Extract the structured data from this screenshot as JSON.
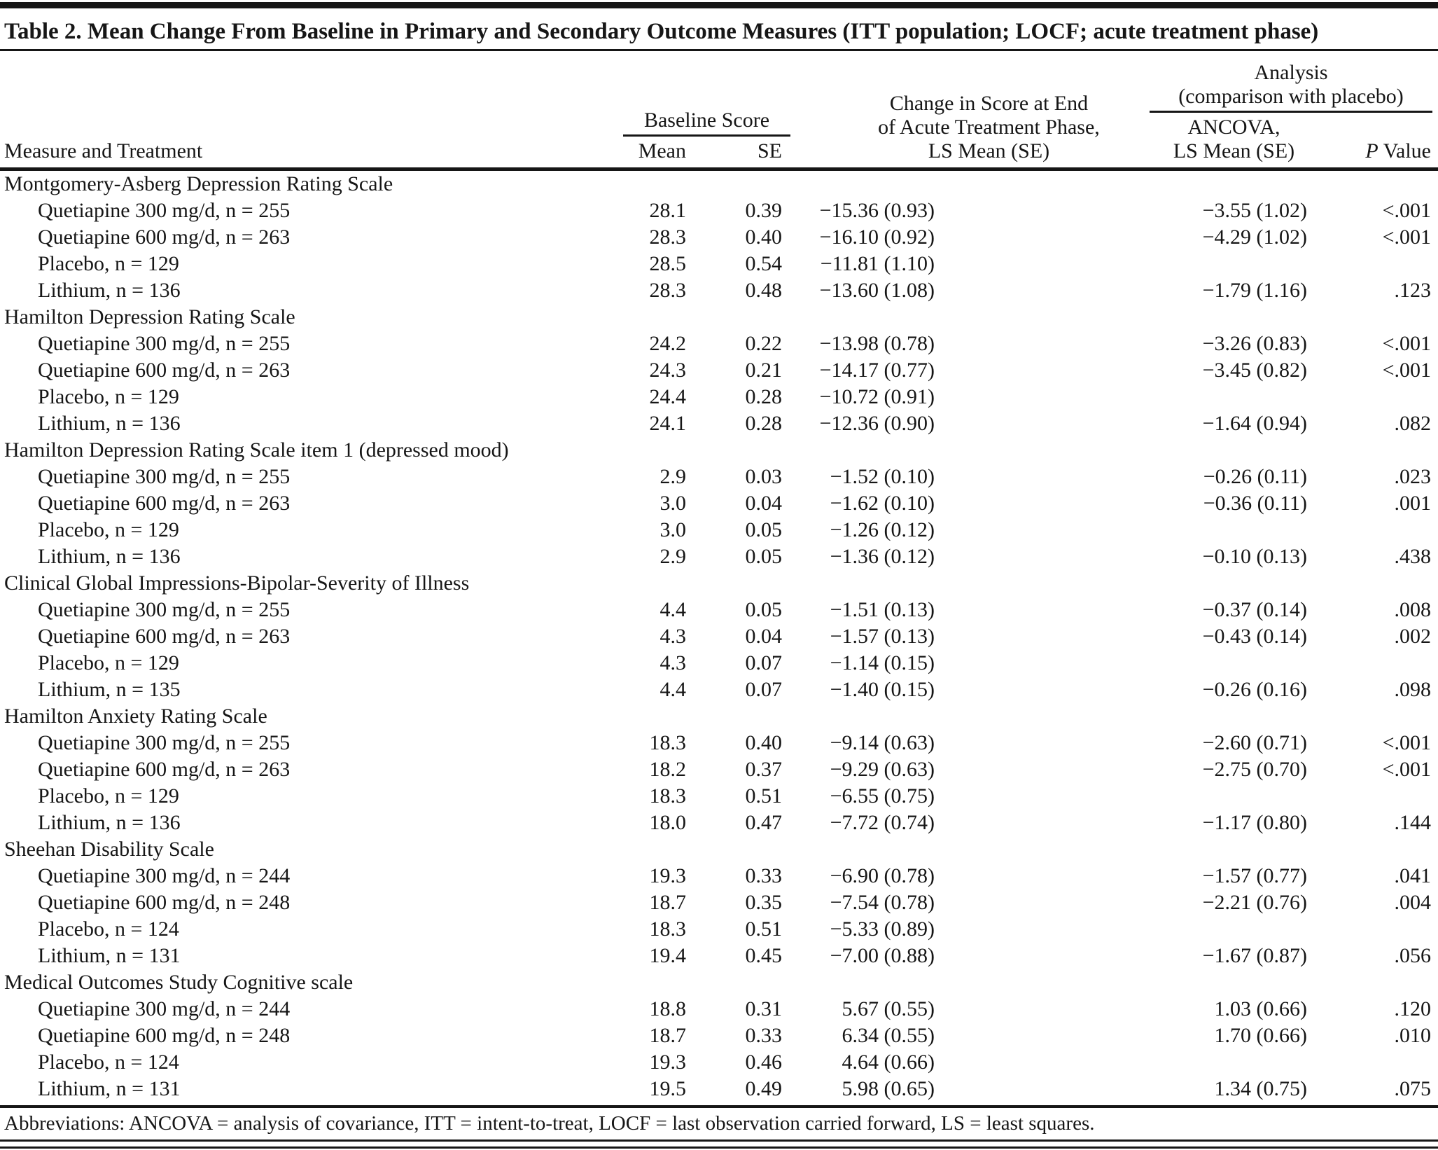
{
  "title": "Table 2. Mean Change From Baseline in Primary and Secondary Outcome Measures (ITT population; LOCF; acute treatment phase)",
  "header": {
    "measure": "Measure and Treatment",
    "baseline_group": "Baseline Score",
    "mean": "Mean",
    "se": "SE",
    "change_lines": [
      "Change in Score at End",
      "of Acute Treatment Phase,",
      "LS Mean (SE)"
    ],
    "analysis_group_lines": [
      "Analysis",
      "(comparison with placebo)"
    ],
    "ancova_lines": [
      "ANCOVA,",
      "LS Mean (SE)"
    ],
    "p_italic": "P",
    "p_rest": " Value"
  },
  "sections": [
    {
      "name": "Montgomery-Asberg Depression Rating Scale",
      "rows": [
        {
          "label": "Quetiapine 300 mg/d, n = 255",
          "mean": "28.1",
          "se": "0.39",
          "change": "−15.36 (0.93)",
          "ancova": "−3.55 (1.02)",
          "p": "<.001"
        },
        {
          "label": "Quetiapine 600 mg/d, n = 263",
          "mean": "28.3",
          "se": "0.40",
          "change": "−16.10 (0.92)",
          "ancova": "−4.29 (1.02)",
          "p": "<.001"
        },
        {
          "label": "Placebo, n = 129",
          "mean": "28.5",
          "se": "0.54",
          "change": "−11.81 (1.10)",
          "ancova": "",
          "p": ""
        },
        {
          "label": "Lithium, n = 136",
          "mean": "28.3",
          "se": "0.48",
          "change": "−13.60 (1.08)",
          "ancova": "−1.79 (1.16)",
          "p": ".123"
        }
      ]
    },
    {
      "name": "Hamilton Depression Rating Scale",
      "rows": [
        {
          "label": "Quetiapine 300 mg/d, n = 255",
          "mean": "24.2",
          "se": "0.22",
          "change": "−13.98 (0.78)",
          "ancova": "−3.26 (0.83)",
          "p": "<.001"
        },
        {
          "label": "Quetiapine 600 mg/d, n = 263",
          "mean": "24.3",
          "se": "0.21",
          "change": "−14.17 (0.77)",
          "ancova": "−3.45 (0.82)",
          "p": "<.001"
        },
        {
          "label": "Placebo, n = 129",
          "mean": "24.4",
          "se": "0.28",
          "change": "−10.72 (0.91)",
          "ancova": "",
          "p": ""
        },
        {
          "label": "Lithium, n = 136",
          "mean": "24.1",
          "se": "0.28",
          "change": "−12.36 (0.90)",
          "ancova": "−1.64 (0.94)",
          "p": ".082"
        }
      ]
    },
    {
      "name": "Hamilton Depression Rating Scale item 1 (depressed mood)",
      "rows": [
        {
          "label": "Quetiapine 300 mg/d, n = 255",
          "mean": "2.9",
          "se": "0.03",
          "change": "−1.52 (0.10)",
          "ancova": "−0.26 (0.11)",
          "p": ".023"
        },
        {
          "label": "Quetiapine 600 mg/d, n = 263",
          "mean": "3.0",
          "se": "0.04",
          "change": "−1.62 (0.10)",
          "ancova": "−0.36 (0.11)",
          "p": ".001"
        },
        {
          "label": "Placebo, n = 129",
          "mean": "3.0",
          "se": "0.05",
          "change": "−1.26 (0.12)",
          "ancova": "",
          "p": ""
        },
        {
          "label": "Lithium, n = 136",
          "mean": "2.9",
          "se": "0.05",
          "change": "−1.36 (0.12)",
          "ancova": "−0.10 (0.13)",
          "p": ".438"
        }
      ]
    },
    {
      "name": "Clinical Global Impressions-Bipolar-Severity of Illness",
      "rows": [
        {
          "label": "Quetiapine 300 mg/d, n = 255",
          "mean": "4.4",
          "se": "0.05",
          "change": "−1.51 (0.13)",
          "ancova": "−0.37 (0.14)",
          "p": ".008"
        },
        {
          "label": "Quetiapine 600 mg/d, n = 263",
          "mean": "4.3",
          "se": "0.04",
          "change": "−1.57 (0.13)",
          "ancova": "−0.43 (0.14)",
          "p": ".002"
        },
        {
          "label": "Placebo, n = 129",
          "mean": "4.3",
          "se": "0.07",
          "change": "−1.14 (0.15)",
          "ancova": "",
          "p": ""
        },
        {
          "label": "Lithium, n = 135",
          "mean": "4.4",
          "se": "0.07",
          "change": "−1.40 (0.15)",
          "ancova": "−0.26 (0.16)",
          "p": ".098"
        }
      ]
    },
    {
      "name": "Hamilton Anxiety Rating Scale",
      "rows": [
        {
          "label": "Quetiapine 300 mg/d, n = 255",
          "mean": "18.3",
          "se": "0.40",
          "change": "−9.14 (0.63)",
          "ancova": "−2.60 (0.71)",
          "p": "<.001"
        },
        {
          "label": "Quetiapine 600 mg/d, n = 263",
          "mean": "18.2",
          "se": "0.37",
          "change": "−9.29 (0.63)",
          "ancova": "−2.75 (0.70)",
          "p": "<.001"
        },
        {
          "label": "Placebo, n = 129",
          "mean": "18.3",
          "se": "0.51",
          "change": "−6.55 (0.75)",
          "ancova": "",
          "p": ""
        },
        {
          "label": "Lithium, n = 136",
          "mean": "18.0",
          "se": "0.47",
          "change": "−7.72 (0.74)",
          "ancova": "−1.17 (0.80)",
          "p": ".144"
        }
      ]
    },
    {
      "name": "Sheehan Disability Scale",
      "rows": [
        {
          "label": "Quetiapine 300 mg/d, n = 244",
          "mean": "19.3",
          "se": "0.33",
          "change": "−6.90 (0.78)",
          "ancova": "−1.57 (0.77)",
          "p": ".041"
        },
        {
          "label": "Quetiapine 600 mg/d, n = 248",
          "mean": "18.7",
          "se": "0.35",
          "change": "−7.54 (0.78)",
          "ancova": "−2.21 (0.76)",
          "p": ".004"
        },
        {
          "label": "Placebo, n = 124",
          "mean": "18.3",
          "se": "0.51",
          "change": "−5.33 (0.89)",
          "ancova": "",
          "p": ""
        },
        {
          "label": "Lithium, n = 131",
          "mean": "19.4",
          "se": "0.45",
          "change": "−7.00 (0.88)",
          "ancova": "−1.67 (0.87)",
          "p": ".056"
        }
      ]
    },
    {
      "name": "Medical Outcomes Study Cognitive scale",
      "rows": [
        {
          "label": "Quetiapine 300 mg/d, n = 244",
          "mean": "18.8",
          "se": "0.31",
          "change": "5.67 (0.55)",
          "ancova": "1.03 (0.66)",
          "p": ".120"
        },
        {
          "label": "Quetiapine 600 mg/d, n = 248",
          "mean": "18.7",
          "se": "0.33",
          "change": "6.34 (0.55)",
          "ancova": "1.70 (0.66)",
          "p": ".010"
        },
        {
          "label": "Placebo, n = 124",
          "mean": "19.3",
          "se": "0.46",
          "change": "4.64 (0.66)",
          "ancova": "",
          "p": ""
        },
        {
          "label": "Lithium, n = 131",
          "mean": "19.5",
          "se": "0.49",
          "change": "5.98 (0.65)",
          "ancova": "1.34 (0.75)",
          "p": ".075"
        }
      ]
    }
  ],
  "footnote": "Abbreviations: ANCOVA = analysis of covariance, ITT = intent-to-treat, LOCF = last observation carried forward, LS = least squares."
}
